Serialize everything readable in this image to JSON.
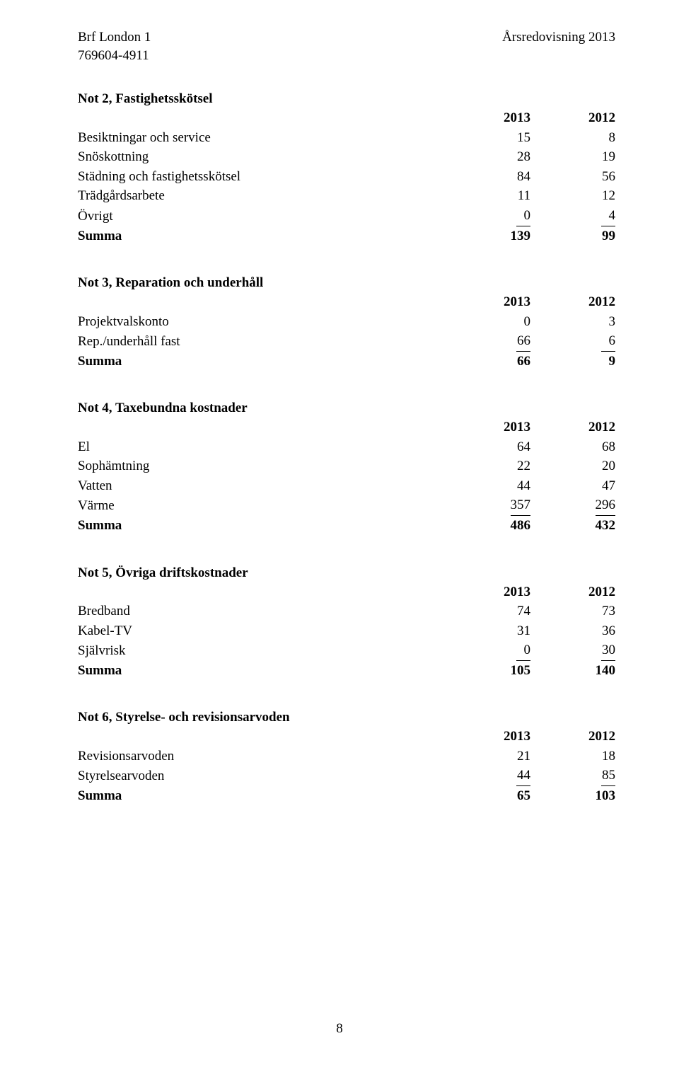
{
  "header": {
    "org_name": "Brf London 1",
    "org_nr": "769604-4911",
    "doc_title": "Årsredovisning 2013"
  },
  "labels": {
    "summa": "Summa"
  },
  "sections": [
    {
      "title": "Not 2, Fastighetsskötsel",
      "year_a": "2013",
      "year_b": "2012",
      "rows": [
        {
          "label": "Besiktningar och service",
          "a": "15",
          "b": "8"
        },
        {
          "label": "Snöskottning",
          "a": "28",
          "b": "19"
        },
        {
          "label": "Städning och fastighetsskötsel",
          "a": "84",
          "b": "56"
        },
        {
          "label": "Trädgårdsarbete",
          "a": "11",
          "b": "12"
        },
        {
          "label": "Övrigt",
          "a": "0",
          "b": "4"
        }
      ],
      "sum": {
        "a": "139",
        "b": "99"
      }
    },
    {
      "title": "Not 3, Reparation och underhåll",
      "year_a": "2013",
      "year_b": "2012",
      "rows": [
        {
          "label": "Projektvalskonto",
          "a": "0",
          "b": "3"
        },
        {
          "label": "Rep./underhåll fast",
          "a": "66",
          "b": "6"
        }
      ],
      "sum": {
        "a": "66",
        "b": "9"
      }
    },
    {
      "title": "Not 4, Taxebundna kostnader",
      "year_a": "2013",
      "year_b": "2012",
      "rows": [
        {
          "label": "El",
          "a": "64",
          "b": "68"
        },
        {
          "label": "Sophämtning",
          "a": "22",
          "b": "20"
        },
        {
          "label": "Vatten",
          "a": "44",
          "b": "47"
        },
        {
          "label": "Värme",
          "a": "357",
          "b": "296"
        }
      ],
      "sum": {
        "a": "486",
        "b": "432"
      }
    },
    {
      "title": "Not 5, Övriga driftskostnader",
      "year_a": "2013",
      "year_b": "2012",
      "rows": [
        {
          "label": "Bredband",
          "a": "74",
          "b": "73"
        },
        {
          "label": "Kabel-TV",
          "a": "31",
          "b": "36"
        },
        {
          "label": "Självrisk",
          "a": "0",
          "b": "30"
        }
      ],
      "sum": {
        "a": "105",
        "b": "140"
      }
    },
    {
      "title": "Not 6, Styrelse- och revisionsarvoden",
      "year_a": "2013",
      "year_b": "2012",
      "rows": [
        {
          "label": "Revisionsarvoden",
          "a": "21",
          "b": "18"
        },
        {
          "label": "Styrelsearvoden",
          "a": "44",
          "b": "85"
        }
      ],
      "sum": {
        "a": "65",
        "b": "103"
      }
    }
  ],
  "page_number": "8"
}
